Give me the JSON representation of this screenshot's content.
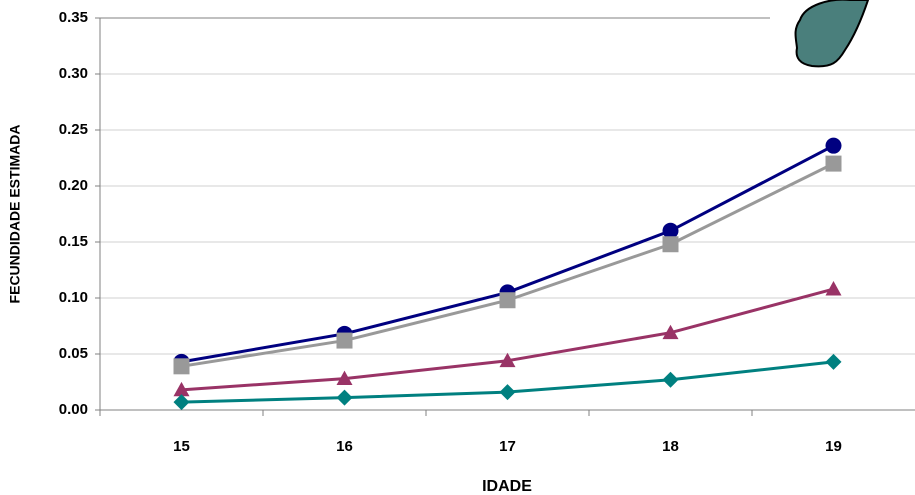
{
  "chart_data": {
    "type": "line",
    "x_label": "IDADE",
    "y_label": "FECUNDIDADE ESTIMADA",
    "categories": [
      "15",
      "16",
      "17",
      "18",
      "19"
    ],
    "series": [
      {
        "color": "#000080",
        "marker": "circle",
        "values": [
          0.043,
          0.068,
          0.105,
          0.16,
          0.236
        ]
      },
      {
        "color": "#999999",
        "marker": "square",
        "values": [
          0.039,
          0.062,
          0.098,
          0.148,
          0.22
        ]
      },
      {
        "color": "#993366",
        "marker": "triangle",
        "values": [
          0.018,
          0.028,
          0.044,
          0.069,
          0.108
        ]
      },
      {
        "color": "#008080",
        "marker": "diamond",
        "values": [
          0.007,
          0.011,
          0.016,
          0.027,
          0.043
        ]
      }
    ],
    "ylim": [
      0,
      0.35
    ],
    "yticks": [
      {
        "value": 0,
        "label": "0.00"
      },
      0.05,
      {
        "value": 0.1,
        "label": "0.10"
      },
      0.15,
      {
        "value": 0.2,
        "label": "0.20"
      },
      0.25,
      {
        "value": 0.3,
        "label": "0.30"
      },
      0.35
    ],
    "grid": true
  }
}
